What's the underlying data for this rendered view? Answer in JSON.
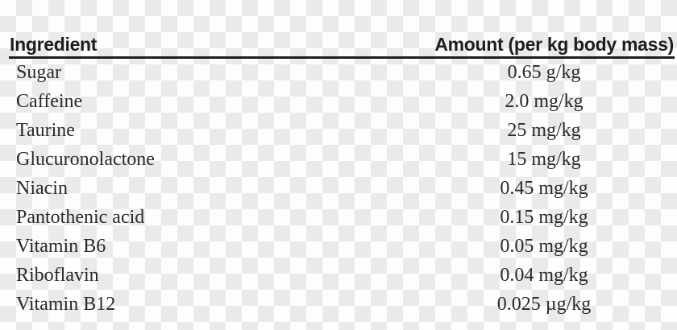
{
  "colors": {
    "checker_light": "#fdfdfd",
    "checker_dark": "#eaeaea",
    "rule": "#1d1d1d",
    "header_text": "#1e1e1e",
    "body_text": "#2a2a2a"
  },
  "table": {
    "columns": [
      {
        "key": "ingredient",
        "label": "Ingredient"
      },
      {
        "key": "amount",
        "label": "Amount (per kg body mass)"
      }
    ],
    "rows": [
      {
        "ingredient": "Sugar",
        "amount": "0.65 g/kg"
      },
      {
        "ingredient": "Caffeine",
        "amount": "2.0 mg/kg"
      },
      {
        "ingredient": "Taurine",
        "amount": "25 mg/kg"
      },
      {
        "ingredient": "Glucuronolactone",
        "amount": "15 mg/kg"
      },
      {
        "ingredient": "Niacin",
        "amount": "0.45 mg/kg"
      },
      {
        "ingredient": "Pantothenic acid",
        "amount": "0.15 mg/kg"
      },
      {
        "ingredient": "Vitamin B6",
        "amount": "0.05 mg/kg"
      },
      {
        "ingredient": "Riboflavin",
        "amount": "0.04 mg/kg"
      },
      {
        "ingredient": "Vitamin B12",
        "amount": "0.025 µg/kg"
      }
    ]
  }
}
